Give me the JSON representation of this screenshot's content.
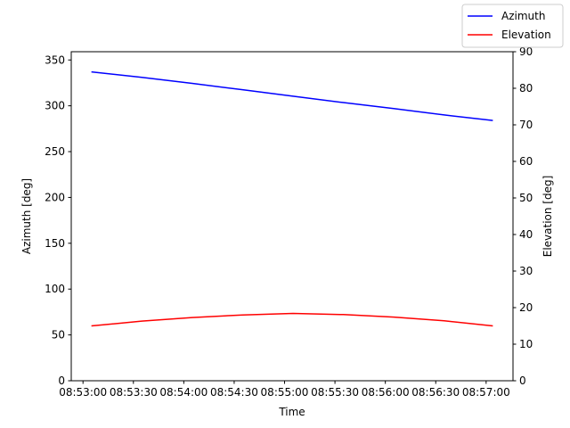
{
  "chart_data": {
    "type": "line",
    "x_label": "Time",
    "y_label": "Azimuth [deg]",
    "y2_label": "Elevation [deg]",
    "x": [
      "08:53:05",
      "08:53:35",
      "08:54:05",
      "08:54:35",
      "08:55:05",
      "08:55:35",
      "08:56:05",
      "08:56:35",
      "08:57:04"
    ],
    "series": [
      {
        "name": "Azimuth",
        "color": "#0000ff",
        "values": [
          337,
          331,
          324.5,
          317.5,
          310.5,
          303.5,
          297,
          290,
          284
        ]
      },
      {
        "name": "Elevation",
        "color": "#ff0000",
        "axis": "y2",
        "values": [
          15.0,
          16.3,
          17.3,
          18.0,
          18.4,
          18.1,
          17.4,
          16.4,
          15.0
        ]
      }
    ],
    "xlim": [
      "08:52:53",
      "08:57:16"
    ],
    "xticks": [
      "08:53:00",
      "08:53:30",
      "08:54:00",
      "08:54:30",
      "08:55:00",
      "08:55:30",
      "08:56:00",
      "08:56:30",
      "08:57:00"
    ],
    "ylim": [
      0,
      359
    ],
    "yticks": [
      0,
      50,
      100,
      150,
      200,
      250,
      300,
      350
    ],
    "y2lim": [
      0,
      90
    ],
    "y2ticks": [
      0,
      10,
      20,
      30,
      40,
      50,
      60,
      70,
      80,
      90
    ],
    "legend": "upper-right"
  }
}
